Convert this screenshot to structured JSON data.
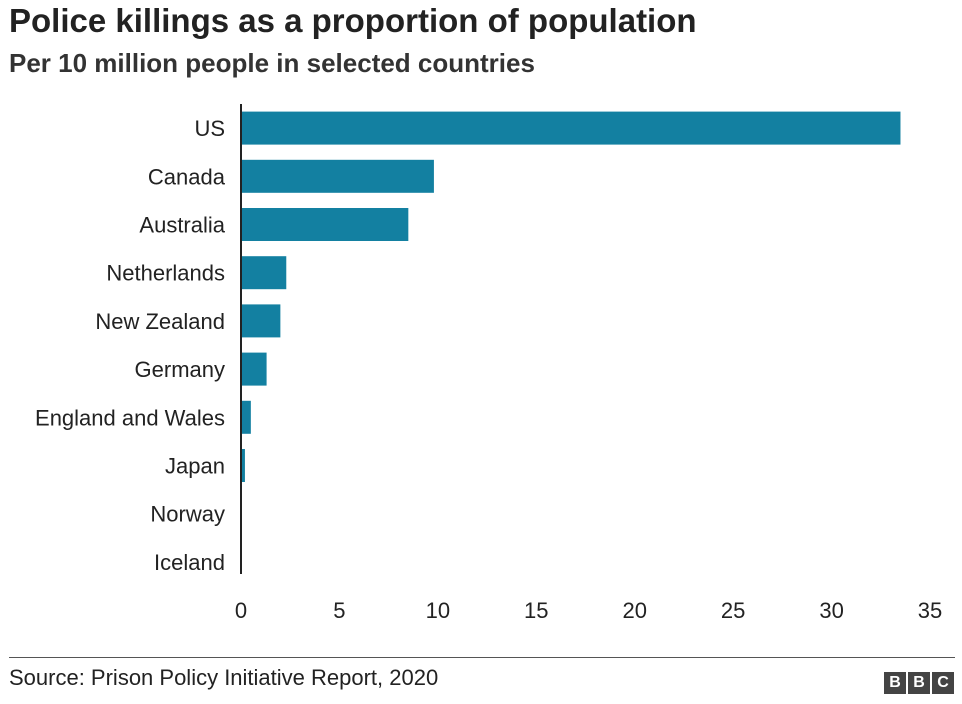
{
  "header": {
    "title": "Police killings as a proportion of population",
    "subtitle": "Per 10 million people in selected countries"
  },
  "footer": {
    "source": "Source: Prison Policy Initiative Report, 2020",
    "logo_letters": [
      "B",
      "B",
      "C"
    ]
  },
  "colors": {
    "bar": "#1380A1",
    "axis": "#222222"
  },
  "chart_data": {
    "type": "bar",
    "orientation": "horizontal",
    "title": "Police killings as a proportion of population",
    "subtitle": "Per 10 million people in selected countries",
    "xlabel": "",
    "ylabel": "",
    "xlim": [
      0,
      35
    ],
    "ticks": [
      0,
      5,
      10,
      15,
      20,
      25,
      30,
      35
    ],
    "grid": false,
    "categories": [
      "US",
      "Canada",
      "Australia",
      "Netherlands",
      "New Zealand",
      "Germany",
      "England and Wales",
      "Japan",
      "Norway",
      "Iceland"
    ],
    "values": [
      33.5,
      9.8,
      8.5,
      2.3,
      2.0,
      1.3,
      0.5,
      0.2,
      0,
      0
    ]
  }
}
